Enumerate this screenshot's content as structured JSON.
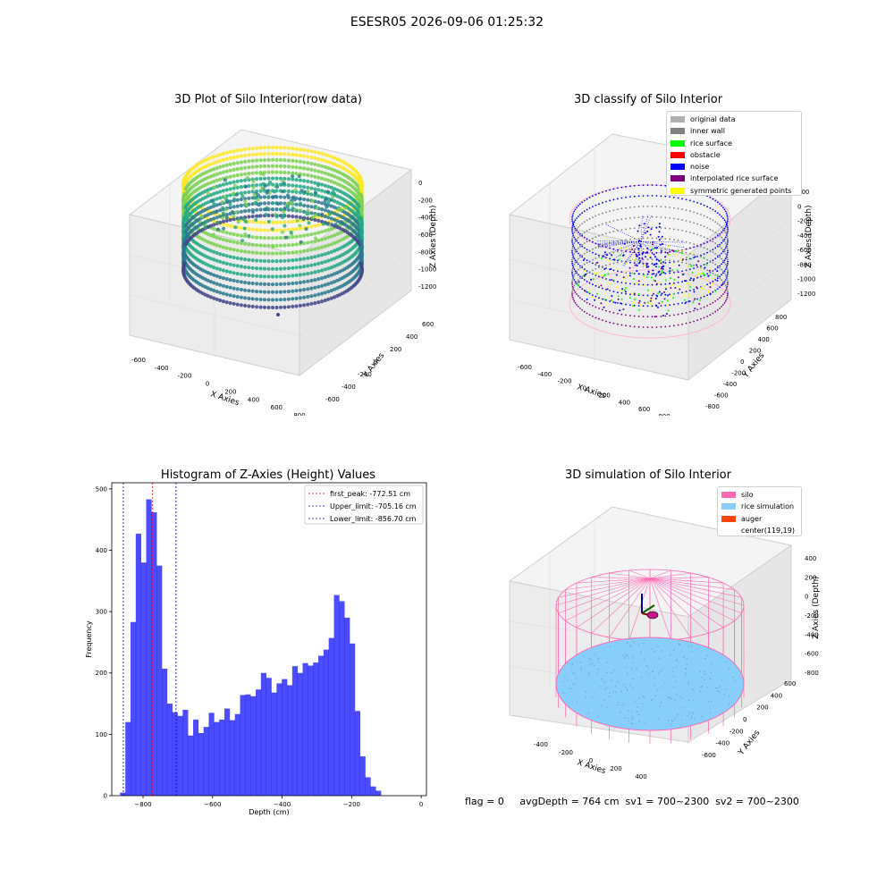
{
  "suptitle": "ESESR05 2026-09-06 01:25:32",
  "footer": "flag = 0     avgDepth = 764 cm  sv1 = 700~2300  sv2 = 700~2300",
  "chart_data": [
    {
      "type": "scatter",
      "title": "3D Plot of Silo Interior(row data)",
      "xlabel": "X Axies",
      "ylabel": "Y Axies",
      "zlabel": "Z Axies (Depth)",
      "x_ticks": [
        "-600",
        "-400",
        "-200",
        "0",
        "200",
        "400",
        "600",
        "800"
      ],
      "y_ticks": [
        "-600",
        "-400",
        "-200",
        "0",
        "200",
        "400",
        "600"
      ],
      "z_ticks": [
        "0",
        "-200",
        "-400",
        "-600",
        "-800",
        "-1000",
        "-1200"
      ],
      "colormap": [
        "#fde725",
        "#7ad151",
        "#22a884",
        "#2a788e",
        "#414487"
      ]
    },
    {
      "type": "scatter",
      "title": "3D classify of Silo Interior",
      "xlabel": "X Axies",
      "ylabel": "Y Axies",
      "zlabel": "Z Axies (Depth)",
      "x_ticks": [
        "-600",
        "-400",
        "-200",
        "0",
        "200",
        "400",
        "600",
        "800"
      ],
      "y_ticks": [
        "-800",
        "-600",
        "-400",
        "-200",
        "0",
        "200",
        "400",
        "600",
        "800"
      ],
      "z_ticks": [
        "200",
        "0",
        "-200",
        "-400",
        "-600",
        "-800",
        "-1000",
        "-1200"
      ],
      "legend": [
        {
          "label": "original data",
          "color": "#b0b0b0"
        },
        {
          "label": "inner wall",
          "color": "#808080"
        },
        {
          "label": "rice surface",
          "color": "#00ff00"
        },
        {
          "label": "obstacle",
          "color": "#ff0000"
        },
        {
          "label": "noise",
          "color": "#0000ff"
        },
        {
          "label": "interpolated rice surface",
          "color": "#800080"
        },
        {
          "label": "symmetric generated points",
          "color": "#ffff00"
        }
      ]
    },
    {
      "type": "bar",
      "title": "Histogram of Z-Axies (Height) Values",
      "xlabel": "Depth (cm)",
      "ylabel": "Frequency",
      "xlim": [
        -890,
        15
      ],
      "ylim": [
        0,
        510
      ],
      "x_ticks": [
        -800,
        -600,
        -400,
        -200,
        0
      ],
      "y_ticks": [
        0,
        100,
        200,
        300,
        400,
        500
      ],
      "bin_width": 15,
      "bin_start": -866,
      "values": [
        5,
        120,
        283,
        427,
        380,
        483,
        462,
        375,
        207,
        150,
        136,
        130,
        140,
        98,
        124,
        102,
        112,
        135,
        120,
        124,
        142,
        123,
        133,
        164,
        165,
        162,
        173,
        200,
        192,
        168,
        183,
        190,
        180,
        211,
        200,
        216,
        212,
        217,
        228,
        238,
        257,
        327,
        317,
        290,
        248,
        138,
        64,
        30,
        15,
        8
      ],
      "color": "#0000ff",
      "lines": [
        {
          "label": "first_peak: -772.51 cm",
          "x": -772.51,
          "color": "#ff0000"
        },
        {
          "label": "Upper_limit: -705.16 cm",
          "x": -705.16,
          "color": "#0000cc"
        },
        {
          "label": "Lower_limit: -856.70 cm",
          "x": -856.7,
          "color": "#0000cc"
        }
      ],
      "legend": "top-right"
    },
    {
      "type": "scatter",
      "title": "3D simulation of Silo Interior",
      "xlabel": "X Axies",
      "ylabel": "Y Axies",
      "zlabel": "Z Axies (Depth)",
      "x_ticks": [
        "-400",
        "-200",
        "0",
        "200",
        "400",
        "600"
      ],
      "y_ticks": [
        "-600",
        "-400",
        "-200",
        "0",
        "200",
        "400",
        "600"
      ],
      "z_ticks": [
        "400",
        "200",
        "0",
        "-200",
        "-400",
        "-600",
        "-800"
      ],
      "legend": [
        {
          "label": "silo",
          "color": "#ff69b4"
        },
        {
          "label": "rice simulation",
          "color": "#87cefa"
        },
        {
          "label": "auger",
          "color": "#ff4500"
        },
        {
          "label": "center(119,19)",
          "color": "#ffffff"
        }
      ]
    }
  ]
}
